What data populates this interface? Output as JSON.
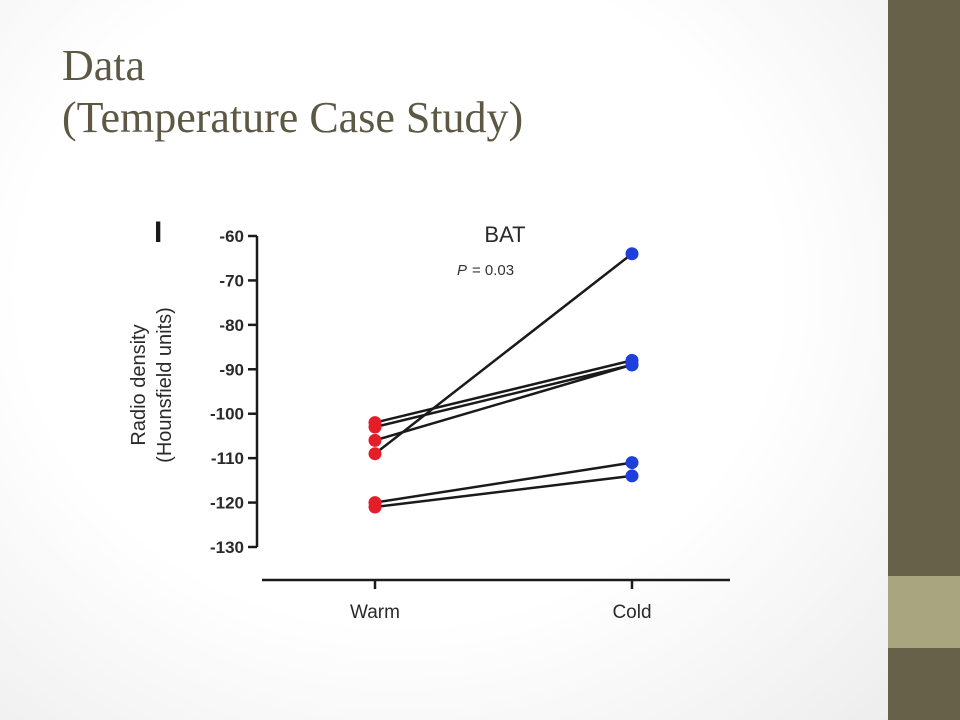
{
  "slide": {
    "title_line1": "Data",
    "title_line2": "(Temperature Case Study)",
    "panel_letter": "I",
    "colors": {
      "sidebar": "#686149",
      "accent": "#a9a57e",
      "title": "#5c5844"
    }
  },
  "chart_data": {
    "type": "line",
    "title": "BAT",
    "annotation_p": "P",
    "annotation_value": "= 0.03",
    "ylabel_line1": "Radio density",
    "ylabel_line2": "(Hounsfield units)",
    "ylim": [
      -130,
      -60
    ],
    "yticks": [
      -60,
      -70,
      -80,
      -90,
      -100,
      -110,
      -120,
      -130
    ],
    "categories": [
      "Warm",
      "Cold"
    ],
    "grid": false,
    "series": [
      {
        "values": [
          -109,
          -64
        ]
      },
      {
        "values": [
          -102,
          -88
        ]
      },
      {
        "values": [
          -106,
          -89
        ]
      },
      {
        "values": [
          -103,
          -89
        ]
      },
      {
        "values": [
          -120,
          -111
        ]
      },
      {
        "values": [
          -121,
          -114
        ]
      }
    ],
    "colors": {
      "warm": "#e41e26",
      "cold": "#1f3fdc",
      "line": "#1a1a1a"
    }
  }
}
